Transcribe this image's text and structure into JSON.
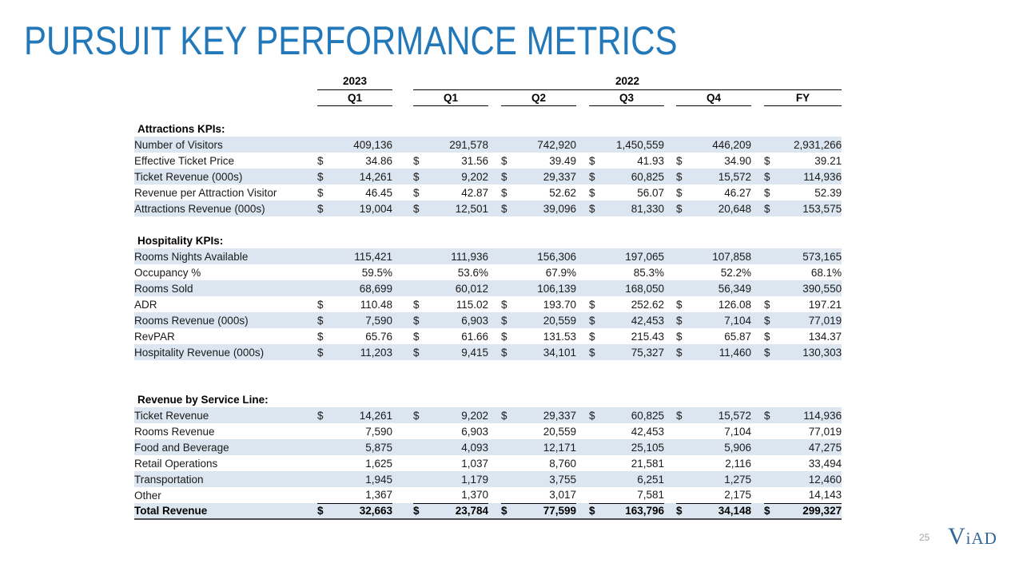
{
  "slide": {
    "title": "PURSUIT KEY PERFORMANCE METRICS",
    "page_number": "25",
    "logo": {
      "initial": "V",
      "rest": "iAD"
    }
  },
  "colors": {
    "title_blue": "#2278b8",
    "row_stripe_blue": "#dce6f1",
    "logo_blue": "#31649b",
    "border_black": "#000000",
    "total_border_gray": "#4d4d4d",
    "page_number_gray": "#a6a6a6"
  },
  "table": {
    "year_groups": [
      {
        "label": "2023",
        "span": 1
      },
      {
        "label": "2022",
        "span": 5
      }
    ],
    "quarter_columns": [
      "Q1",
      "Q1",
      "Q2",
      "Q3",
      "Q4",
      "FY"
    ],
    "sections": [
      {
        "header": "Attractions KPIs:",
        "rows": [
          {
            "label": "Number of Visitors",
            "dollar": false,
            "values": [
              "409,136",
              "291,578",
              "742,920",
              "1,450,559",
              "446,209",
              "2,931,266"
            ]
          },
          {
            "label": "Effective Ticket Price",
            "dollar": true,
            "values": [
              "34.86",
              "31.56",
              "39.49",
              "41.93",
              "34.90",
              "39.21"
            ]
          },
          {
            "label": "Ticket Revenue (000s)",
            "dollar": true,
            "values": [
              "14,261",
              "9,202",
              "29,337",
              "60,825",
              "15,572",
              "114,936"
            ]
          },
          {
            "label": "Revenue per Attraction Visitor",
            "dollar": true,
            "values": [
              "46.45",
              "42.87",
              "52.62",
              "56.07",
              "46.27",
              "52.39"
            ]
          },
          {
            "label": "Attractions Revenue (000s)",
            "dollar": true,
            "values": [
              "19,004",
              "12,501",
              "39,096",
              "81,330",
              "20,648",
              "153,575"
            ]
          }
        ]
      },
      {
        "header": "Hospitality KPIs:",
        "rows": [
          {
            "label": "Rooms Nights Available",
            "dollar": false,
            "values": [
              "115,421",
              "111,936",
              "156,306",
              "197,065",
              "107,858",
              "573,165"
            ]
          },
          {
            "label": "Occupancy %",
            "dollar": false,
            "values": [
              "59.5%",
              "53.6%",
              "67.9%",
              "85.3%",
              "52.2%",
              "68.1%"
            ]
          },
          {
            "label": "Rooms Sold",
            "dollar": false,
            "values": [
              "68,699",
              "60,012",
              "106,139",
              "168,050",
              "56,349",
              "390,550"
            ]
          },
          {
            "label": "ADR",
            "dollar": true,
            "values": [
              "110.48",
              "115.02",
              "193.70",
              "252.62",
              "126.08",
              "197.21"
            ]
          },
          {
            "label": "Rooms Revenue (000s)",
            "dollar": true,
            "values": [
              "7,590",
              "6,903",
              "20,559",
              "42,453",
              "7,104",
              "77,019"
            ]
          },
          {
            "label": "RevPAR",
            "dollar": true,
            "values": [
              "65.76",
              "61.66",
              "131.53",
              "215.43",
              "65.87",
              "134.37"
            ]
          },
          {
            "label": "Hospitality Revenue (000s)",
            "dollar": true,
            "values": [
              "11,203",
              "9,415",
              "34,101",
              "75,327",
              "11,460",
              "130,303"
            ]
          }
        ]
      },
      {
        "header": "Revenue by Service Line:",
        "rows": [
          {
            "label": "Ticket Revenue",
            "dollar": true,
            "values": [
              "14,261",
              "9,202",
              "29,337",
              "60,825",
              "15,572",
              "114,936"
            ]
          },
          {
            "label": "Rooms Revenue",
            "dollar": false,
            "values": [
              "7,590",
              "6,903",
              "20,559",
              "42,453",
              "7,104",
              "77,019"
            ]
          },
          {
            "label": "Food and Beverage",
            "dollar": false,
            "values": [
              "5,875",
              "4,093",
              "12,171",
              "25,105",
              "5,906",
              "47,275"
            ]
          },
          {
            "label": "Retail Operations",
            "dollar": false,
            "values": [
              "1,625",
              "1,037",
              "8,760",
              "21,581",
              "2,116",
              "33,494"
            ]
          },
          {
            "label": "Transportation",
            "dollar": false,
            "values": [
              "1,945",
              "1,179",
              "3,755",
              "6,251",
              "1,275",
              "12,460"
            ]
          },
          {
            "label": "Other",
            "dollar": false,
            "values": [
              "1,367",
              "1,370",
              "3,017",
              "7,581",
              "2,175",
              "14,143"
            ],
            "underline": true
          },
          {
            "label": "Total Revenue",
            "dollar": true,
            "values": [
              "32,663",
              "23,784",
              "77,599",
              "163,796",
              "34,148",
              "299,327"
            ],
            "total": true
          }
        ]
      }
    ]
  }
}
